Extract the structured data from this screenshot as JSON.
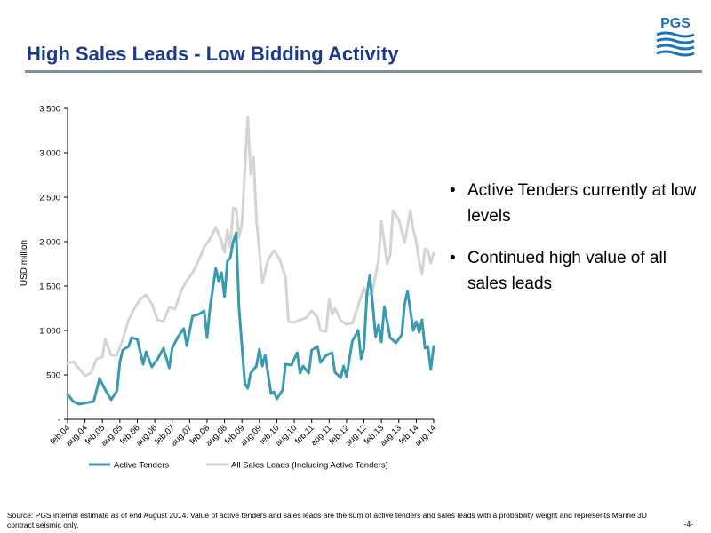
{
  "slide": {
    "title": "High Sales Leads - Low Bidding Activity",
    "logo_text": "PGS",
    "bullets": [
      "Active Tenders currently at low levels",
      "Continued high value of all sales leads"
    ],
    "footer": "Source: PGS internal estimate as of end August 2014. Value of active tenders and sales leads are the sum of active tenders and sales leads with a probability weight and represents Marine 3D contract seismic only.",
    "page_number": "-4-"
  },
  "colors": {
    "title": "#1b3a8f",
    "active_tenders": "#3a9bb0",
    "all_sales_leads": "#d4d4d4",
    "logo": "#1f71b8"
  },
  "chart_data": {
    "type": "line",
    "title": "",
    "xlabel": "",
    "ylabel": "USD million",
    "ylim": [
      0,
      3500
    ],
    "yticks": [
      0,
      500,
      1000,
      1500,
      2000,
      2500,
      3000,
      3500
    ],
    "ytick_labels": [
      "-",
      "500",
      "1 000",
      "1 500",
      "2 000",
      "2 500",
      "3 000",
      "3 500"
    ],
    "xtick_labels": [
      "feb.04",
      "aug.04",
      "feb.05",
      "aug.05",
      "feb.06",
      "aug.06",
      "feb.07",
      "aug.07",
      "feb.08",
      "aug.08",
      "feb.09",
      "aug.09",
      "feb.10",
      "aug.10",
      "feb.11",
      "aug.11",
      "feb.12",
      "aug.12",
      "feb.13",
      "aug.13",
      "feb.14",
      "aug.14"
    ],
    "x_range": [
      "2004-02",
      "2014-08"
    ],
    "grid": false,
    "legend": "bottom",
    "series": [
      {
        "name": "Active Tenders",
        "points": [
          [
            "2004-02",
            280
          ],
          [
            "2004-04",
            200
          ],
          [
            "2004-06",
            170
          ],
          [
            "2004-09",
            190
          ],
          [
            "2004-11",
            200
          ],
          [
            "2005-01",
            460
          ],
          [
            "2005-03",
            330
          ],
          [
            "2005-05",
            220
          ],
          [
            "2005-07",
            320
          ],
          [
            "2005-08",
            650
          ],
          [
            "2005-09",
            780
          ],
          [
            "2005-11",
            820
          ],
          [
            "2005-12",
            920
          ],
          [
            "2006-02",
            900
          ],
          [
            "2006-04",
            620
          ],
          [
            "2006-05",
            760
          ],
          [
            "2006-07",
            590
          ],
          [
            "2006-09",
            680
          ],
          [
            "2006-11",
            800
          ],
          [
            "2007-01",
            580
          ],
          [
            "2007-02",
            800
          ],
          [
            "2007-04",
            930
          ],
          [
            "2007-06",
            1020
          ],
          [
            "2007-07",
            830
          ],
          [
            "2007-09",
            1160
          ],
          [
            "2007-11",
            1180
          ],
          [
            "2008-01",
            1220
          ],
          [
            "2008-02",
            920
          ],
          [
            "2008-03",
            1250
          ],
          [
            "2008-05",
            1700
          ],
          [
            "2008-06",
            1550
          ],
          [
            "2008-07",
            1650
          ],
          [
            "2008-08",
            1380
          ],
          [
            "2008-09",
            1780
          ],
          [
            "2008-10",
            1820
          ],
          [
            "2008-11",
            2000
          ],
          [
            "2008-12",
            2100
          ],
          [
            "2009-01",
            1250
          ],
          [
            "2009-03",
            400
          ],
          [
            "2009-04",
            350
          ],
          [
            "2009-05",
            520
          ],
          [
            "2009-07",
            600
          ],
          [
            "2009-08",
            790
          ],
          [
            "2009-09",
            600
          ],
          [
            "2009-10",
            720
          ],
          [
            "2009-12",
            290
          ],
          [
            "2010-01",
            310
          ],
          [
            "2010-02",
            230
          ],
          [
            "2010-04",
            330
          ],
          [
            "2010-05",
            620
          ],
          [
            "2010-07",
            610
          ],
          [
            "2010-09",
            750
          ],
          [
            "2010-10",
            520
          ],
          [
            "2010-11",
            600
          ],
          [
            "2011-01",
            520
          ],
          [
            "2011-02",
            780
          ],
          [
            "2011-04",
            820
          ],
          [
            "2011-05",
            640
          ],
          [
            "2011-07",
            720
          ],
          [
            "2011-09",
            750
          ],
          [
            "2011-10",
            530
          ],
          [
            "2011-12",
            470
          ],
          [
            "2012-01",
            600
          ],
          [
            "2012-02",
            480
          ],
          [
            "2012-04",
            880
          ],
          [
            "2012-06",
            1000
          ],
          [
            "2012-07",
            680
          ],
          [
            "2012-08",
            800
          ],
          [
            "2012-09",
            1400
          ],
          [
            "2012-10",
            1620
          ],
          [
            "2012-11",
            1300
          ],
          [
            "2012-12",
            930
          ],
          [
            "2013-01",
            1060
          ],
          [
            "2013-02",
            870
          ],
          [
            "2013-03",
            1270
          ],
          [
            "2013-05",
            920
          ],
          [
            "2013-07",
            860
          ],
          [
            "2013-09",
            950
          ],
          [
            "2013-10",
            1300
          ],
          [
            "2013-11",
            1440
          ],
          [
            "2014-01",
            1000
          ],
          [
            "2014-02",
            1100
          ],
          [
            "2014-03",
            980
          ],
          [
            "2014-04",
            1120
          ],
          [
            "2014-05",
            800
          ],
          [
            "2014-06",
            820
          ],
          [
            "2014-07",
            560
          ],
          [
            "2014-08",
            820
          ]
        ]
      },
      {
        "name": "All Sales Leads (Including Active Tenders)",
        "points": [
          [
            "2004-02",
            630
          ],
          [
            "2004-04",
            650
          ],
          [
            "2004-06",
            570
          ],
          [
            "2004-08",
            490
          ],
          [
            "2004-10",
            520
          ],
          [
            "2004-12",
            680
          ],
          [
            "2005-02",
            700
          ],
          [
            "2005-03",
            900
          ],
          [
            "2005-05",
            720
          ],
          [
            "2005-07",
            720
          ],
          [
            "2005-09",
            900
          ],
          [
            "2005-11",
            1120
          ],
          [
            "2006-01",
            1250
          ],
          [
            "2006-03",
            1350
          ],
          [
            "2006-05",
            1400
          ],
          [
            "2006-07",
            1300
          ],
          [
            "2006-09",
            1120
          ],
          [
            "2006-11",
            1100
          ],
          [
            "2007-01",
            1260
          ],
          [
            "2007-03",
            1240
          ],
          [
            "2007-05",
            1440
          ],
          [
            "2007-07",
            1560
          ],
          [
            "2007-09",
            1650
          ],
          [
            "2007-11",
            1780
          ],
          [
            "2008-01",
            1940
          ],
          [
            "2008-03",
            2030
          ],
          [
            "2008-05",
            2160
          ],
          [
            "2008-07",
            2000
          ],
          [
            "2008-08",
            1880
          ],
          [
            "2008-09",
            2130
          ],
          [
            "2008-10",
            1940
          ],
          [
            "2008-11",
            2380
          ],
          [
            "2008-12",
            2370
          ],
          [
            "2009-01",
            2050
          ],
          [
            "2009-02",
            2200
          ],
          [
            "2009-04",
            3400
          ],
          [
            "2009-05",
            2760
          ],
          [
            "2009-06",
            2950
          ],
          [
            "2009-07",
            2250
          ],
          [
            "2009-09",
            1530
          ],
          [
            "2009-11",
            1800
          ],
          [
            "2010-01",
            1900
          ],
          [
            "2010-03",
            1800
          ],
          [
            "2010-05",
            1600
          ],
          [
            "2010-06",
            1100
          ],
          [
            "2010-08",
            1090
          ],
          [
            "2010-10",
            1120
          ],
          [
            "2010-12",
            1140
          ],
          [
            "2011-02",
            1220
          ],
          [
            "2011-04",
            1150
          ],
          [
            "2011-05",
            1000
          ],
          [
            "2011-07",
            990
          ],
          [
            "2011-08",
            1350
          ],
          [
            "2011-09",
            1180
          ],
          [
            "2011-10",
            1250
          ],
          [
            "2011-12",
            1110
          ],
          [
            "2012-02",
            1070
          ],
          [
            "2012-04",
            1080
          ],
          [
            "2012-06",
            1280
          ],
          [
            "2012-08",
            1480
          ],
          [
            "2012-09",
            1390
          ],
          [
            "2012-11",
            1440
          ],
          [
            "2013-01",
            1800
          ],
          [
            "2013-02",
            2230
          ],
          [
            "2013-04",
            1750
          ],
          [
            "2013-05",
            1850
          ],
          [
            "2013-06",
            2350
          ],
          [
            "2013-08",
            2250
          ],
          [
            "2013-10",
            1990
          ],
          [
            "2013-12",
            2350
          ],
          [
            "2014-01",
            2130
          ],
          [
            "2014-02",
            2000
          ],
          [
            "2014-03",
            1780
          ],
          [
            "2014-04",
            1630
          ],
          [
            "2014-05",
            1920
          ],
          [
            "2014-06",
            1900
          ],
          [
            "2014-07",
            1760
          ],
          [
            "2014-08",
            1870
          ]
        ]
      }
    ]
  }
}
